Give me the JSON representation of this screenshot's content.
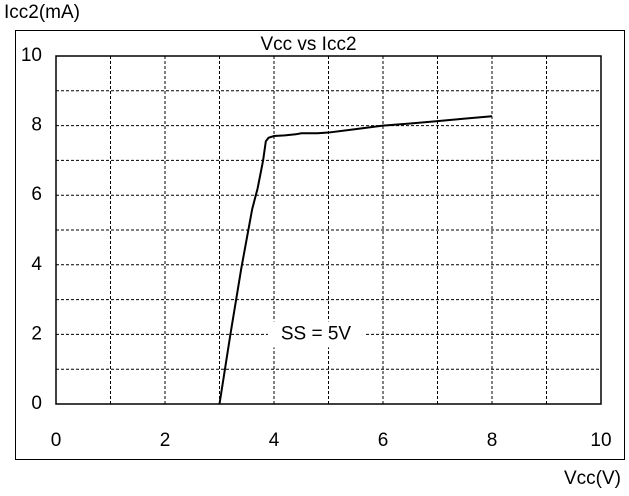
{
  "chart_data": {
    "type": "line",
    "title": "Vcc vs Icc2",
    "xlabel": "Vcc(V)",
    "ylabel": "Icc2(mA)",
    "xlim": [
      0,
      10
    ],
    "ylim": [
      0,
      10
    ],
    "xticks": [
      0,
      2,
      4,
      6,
      8,
      10
    ],
    "yticks": [
      0,
      2,
      4,
      6,
      8,
      10
    ],
    "grid": true,
    "annotation": "SS = 5V",
    "series": [
      {
        "color": "#000000",
        "x": [
          3.0,
          3.2,
          3.4,
          3.6,
          3.7,
          3.8,
          3.85,
          3.9,
          4.0,
          4.2,
          4.4,
          4.5,
          4.8,
          5.0,
          5.5,
          6.0,
          6.5,
          7.0,
          7.5,
          8.0
        ],
        "y": [
          0.0,
          2.0,
          3.9,
          5.6,
          6.2,
          7.0,
          7.55,
          7.65,
          7.7,
          7.72,
          7.75,
          7.78,
          7.78,
          7.8,
          7.9,
          8.0,
          8.06,
          8.13,
          8.2,
          8.27
        ]
      }
    ]
  }
}
